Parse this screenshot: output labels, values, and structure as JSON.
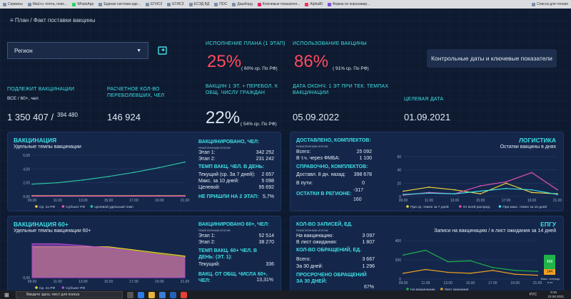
{
  "bookmarks": [
    "Сервисы",
    "Mail.ru: почта, поис...",
    "WhatsApp",
    "Единая система иде...",
    "ЕГИСЗ",
    "ЕГИСЗ",
    "ЕСЭД ВД",
    "ПОС",
    "Дашборд",
    "Ключевые показател...",
    "AlphaBI",
    "Форма по коронавир...",
    "Список для чтения"
  ],
  "breadcrumb": "План / Факт поставки вакцины",
  "region": {
    "label": "Регион"
  },
  "kpis": {
    "plan_title": "ИСПОЛНЕНИЕ ПЛАНА (1 ЭТАП)",
    "plan_value": "25%",
    "plan_note": "( 60% ср. По РФ)",
    "use_title": "ИСПОЛЬЗОВАНИЕ ВАКЦИНЫ",
    "use_value": "86%",
    "use_note": "( 91% ср. По РФ)",
    "btn": "Контрольные даты и ключевые показатели",
    "subj_title": "ПОДЛЕЖИТ ВАКЦИНАЦИИ",
    "subj_sub": "ВСЕ / 60+, чел",
    "subj_all": "1 350 407 /",
    "subj_60": "394 480",
    "calc_title": "РАСЧЕТНОЕ КОЛ-ВО ПЕРЕБОЛЕВШИХ, ЧЕЛ",
    "calc_value": "146 924",
    "vac_title": "ВАКЦИН 1 ЭТ. + ПЕРЕБОЛ. К ОБЩ. ЧИСЛУ ГРАЖДАН",
    "vac_value": "22%",
    "vac_note": "( 54% ср. По РФ)",
    "end_title": "ДАТА ОКОНЧ. 1 ЭТ ПРИ ТЕК. ТЕМПАХ ВАКЦИНАЦИИ",
    "end_value": "05.09.2022",
    "target_title": "ЦЕЛЕВАЯ ДАТА",
    "target_value": "01.09.2021"
  },
  "p1": {
    "title": "ВАКЦИНАЦИЯ",
    "sub": "Удельные темпы вакцинации",
    "yticks": [
      "6,00",
      "4,00",
      "2,00",
      "0,00"
    ],
    "xticks": [
      "09.00",
      "11.00",
      "13.00",
      "15.00",
      "17.00",
      "19.00",
      "21.00"
    ],
    "legend": [
      "Ср. по РФ",
      "Субъект РФ",
      "Целевой удельный темп"
    ],
    "h1": "ВАКЦИНИРОВАНО, ЧЕЛ:",
    "h1s": "Накопленным итогом",
    "e1l": "Этап 1:",
    "e1v": "342 252",
    "e2l": "Этап 2:",
    "e2v": "231 242",
    "h2": "ТЕМП ВАКЦ. ЧЕЛ. В ДЕНЬ:",
    "t1l": "Текущий (ср. За 7 дней):",
    "t1v": "2 657",
    "t2l": "Макс. за 10 дней:",
    "t2v": "5 098",
    "t3l": "Целевой:",
    "t3v": "95 692",
    "nl": "НЕ ПРИШЛИ НА 2 ЭТАП:",
    "nv": "5,7%"
  },
  "p2": {
    "title": "ВАКЦИНАЦИЯ 60+",
    "sub": "Удельные темпы вакцинации 60+",
    "yticks": [
      "0,00"
    ],
    "xticks": [
      "09.00",
      "11.00",
      "13.00",
      "15.00",
      "17.00",
      "19.00",
      "21.00"
    ],
    "legend": [
      "Ср. по РФ",
      "Субъект РФ"
    ],
    "h1": "ВАКЦИНИРОВАНО 60+, ЧЕЛ:",
    "h1s": "Накопленным итогом",
    "e1l": "Этап 1:",
    "e1v": "52 514",
    "e2l": "Этап 2:",
    "e2v": "38 270",
    "h2": "ТЕМП ВАКЦ. 60+ ЧЕЛ. В ДЕНЬ: (ЭТ. 1):",
    "t1l": "Текущий:",
    "t1v": "336",
    "h3": "ВАКЦ. ОТ ОБЩ. ЧИСЛА 60+, ЧЕЛ:",
    "h3v": "13,31%"
  },
  "p3": {
    "title": "ДОСТАВЛЕНО, КОМПЛЕКТОВ:",
    "sub": "Накопленным итогом",
    "a1l": "Всего:",
    "a1v": "25 092",
    "a2l": "В т.ч. через ФМБА:",
    "a2v": "1 100",
    "h2": "СПРАВОЧНО, КОМПЛЕКТОВ:",
    "b1l": "Доставл. 8 дн. назад:",
    "b1v": "398 678",
    "b2l": "В пути:",
    "b2v": "0",
    "h3": "ОСТАТКИ В РЕГИОНЕ:",
    "h3a": "-317",
    "h3b": "160",
    "rtitle": "ЛОГИСТИКА",
    "rsub": "Остатки вакцины в днях",
    "yticks": [
      "60",
      "40",
      "20",
      "0"
    ],
    "xticks": [
      "09.00",
      "11.00",
      "13.00",
      "15.00",
      "17.00",
      "19.00",
      "21.00"
    ],
    "legend": [
      "При ср. темпе за 7 дней",
      "От всей распред.",
      "При макс. темпе за 10 дней"
    ]
  },
  "p4": {
    "title": "КОЛ-ВО ЗАПИСЕЙ, ЕД.",
    "sub": "Накопленным итогом",
    "a1l": "На вакцинацию:",
    "a1v": "3 097",
    "a2l": "В лист ожидания:",
    "a2v": "1 807",
    "h2": "КОЛ-ВО ОБРАЩЕНИЙ, ЕД.",
    "b1l": "Всего:",
    "b1v": "3 667",
    "b2l": "За 30 дней:",
    "b2v": "1 296",
    "h3": "ПРОСРОЧЕНО ОБРАЩЕНИЙ ЗА 30 ДНЕЙ:",
    "h3v": "67%",
    "rtitle": "ЕПГУ",
    "rsub": "Записи на вакцинацию / в лист ожидания за 14 дней",
    "yticks": [
      "400",
      "200",
      "0"
    ],
    "xticks": [
      "09.00",
      "11.00",
      "13.00",
      "15.00",
      "17.00",
      "19.00",
      "21.00"
    ],
    "legend": [
      "На вакцинацию",
      "Лист ожидания"
    ],
    "bar_top": "408",
    "bar_bot": "144",
    "bar_cap": "Макс. очередь в оч."
  },
  "taskbar": {
    "search": "Введите здесь текст для поиска",
    "lang": "РУС",
    "time": "8:15",
    "date": "23.08.2021"
  },
  "chart_data": [
    {
      "type": "line",
      "title": "Удельные темпы вакцинации",
      "x": [
        "09.00",
        "11.00",
        "13.00",
        "15.00",
        "17.00",
        "19.00",
        "21.00"
      ],
      "series": [
        {
          "name": "Ср. по РФ",
          "values": [
            0.1,
            0.1,
            0.1,
            0.1,
            0.1,
            0.1,
            0.1
          ]
        },
        {
          "name": "Субъект РФ",
          "values": [
            0.05,
            0.05,
            0.05,
            0.05,
            0.05,
            0.05,
            0.05
          ]
        },
        {
          "name": "Целевой удельный темп",
          "values": [
            1.8,
            2.0,
            2.4,
            2.9,
            3.5,
            4.2,
            5.0
          ]
        }
      ],
      "ylim": [
        0,
        6
      ]
    },
    {
      "type": "area",
      "title": "Удельные темпы вакцинации 60+",
      "x": [
        "09.00",
        "11.00",
        "13.00",
        "15.00",
        "17.00",
        "19.00",
        "21.00"
      ],
      "series": [
        {
          "name": "Ср. по РФ",
          "values": [
            5,
            5,
            5,
            5,
            4.5,
            4,
            3.5
          ]
        },
        {
          "name": "Субъект РФ",
          "values": [
            5.5,
            5.5,
            5.2,
            4.8,
            4.2,
            3.6,
            3.2
          ]
        }
      ]
    },
    {
      "type": "line",
      "title": "Остатки вакцины в днях",
      "x": [
        "09.00",
        "11.00",
        "13.00",
        "15.00",
        "17.00",
        "19.00",
        "21.00"
      ],
      "series": [
        {
          "name": "При ср. темпе за 7 дней",
          "values": [
            8,
            14,
            10,
            4,
            20,
            6,
            4
          ]
        },
        {
          "name": "От всей распред.",
          "values": [
            2,
            6,
            4,
            16,
            22,
            36,
            10
          ]
        },
        {
          "name": "При макс. темпе за 10 дней",
          "values": [
            3,
            5,
            4,
            8,
            12,
            10,
            3
          ]
        }
      ],
      "ylim": [
        0,
        60
      ]
    },
    {
      "type": "line",
      "title": "Записи на вакцинацию / в лист ожидания за 14 дней",
      "x": [
        "09.00",
        "11.00",
        "13.00",
        "15.00",
        "17.00",
        "19.00",
        "21.00"
      ],
      "series": [
        {
          "name": "На вакцинацию",
          "values": [
            250,
            300,
            180,
            190,
            120,
            90,
            80
          ]
        },
        {
          "name": "Лист ожидания",
          "values": [
            60,
            100,
            70,
            60,
            90,
            50,
            40
          ]
        }
      ],
      "ylim": [
        0,
        400
      ]
    }
  ]
}
